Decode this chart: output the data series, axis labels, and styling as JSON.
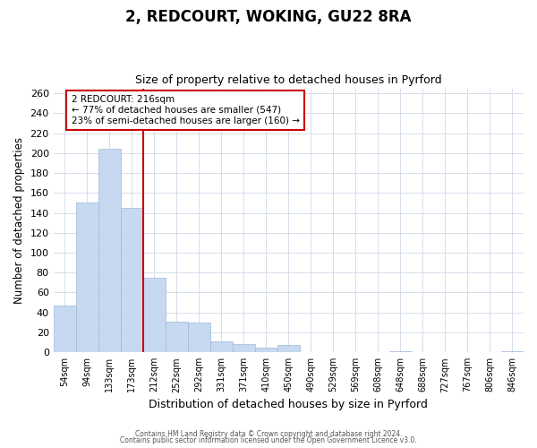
{
  "title": "2, REDCOURT, WOKING, GU22 8RA",
  "subtitle": "Size of property relative to detached houses in Pyrford",
  "xlabel": "Distribution of detached houses by size in Pyrford",
  "ylabel": "Number of detached properties",
  "bar_labels": [
    "54sqm",
    "94sqm",
    "133sqm",
    "173sqm",
    "212sqm",
    "252sqm",
    "292sqm",
    "331sqm",
    "371sqm",
    "410sqm",
    "450sqm",
    "490sqm",
    "529sqm",
    "569sqm",
    "608sqm",
    "648sqm",
    "688sqm",
    "727sqm",
    "767sqm",
    "806sqm",
    "846sqm"
  ],
  "bar_values": [
    47,
    150,
    204,
    145,
    75,
    31,
    30,
    11,
    8,
    5,
    7,
    0,
    0,
    0,
    0,
    1,
    0,
    0,
    0,
    0,
    1
  ],
  "bar_color": "#c6d9f0",
  "bar_edge_color": "#a0b8d8",
  "vline_position": 3.5,
  "vline_color": "#cc0000",
  "annotation_text": "2 REDCOURT: 216sqm\n← 77% of detached houses are smaller (547)\n23% of semi-detached houses are larger (160) →",
  "ylim": [
    0,
    265
  ],
  "yticks": [
    0,
    20,
    40,
    60,
    80,
    100,
    120,
    140,
    160,
    180,
    200,
    220,
    240,
    260
  ],
  "footer_line1": "Contains HM Land Registry data © Crown copyright and database right 2024.",
  "footer_line2": "Contains public sector information licensed under the Open Government Licence v3.0.",
  "background_color": "#ffffff",
  "grid_color": "#d0d8e8"
}
